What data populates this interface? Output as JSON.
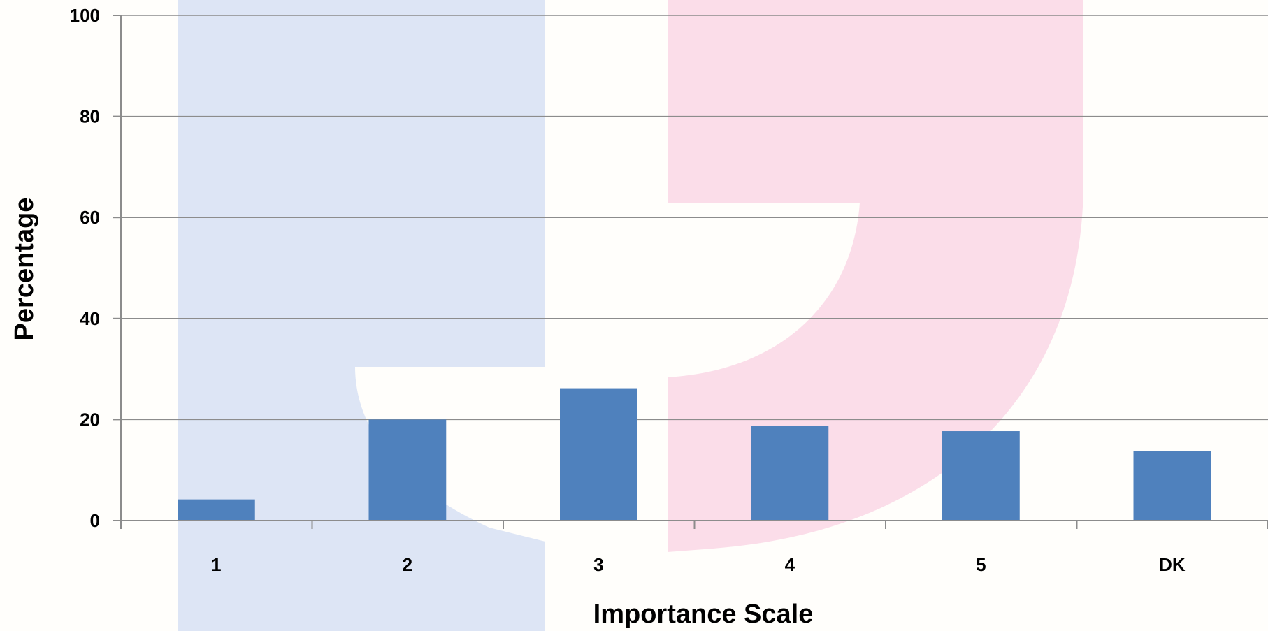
{
  "chart_data": {
    "type": "bar",
    "title": "",
    "xlabel": "Importance Scale",
    "ylabel": "Percentage",
    "categories": [
      "1",
      "2",
      "3",
      "4",
      "5",
      "DK"
    ],
    "series": [
      {
        "values": [
          4.2,
          20,
          26.2,
          18.8,
          17.7,
          13.7
        ]
      }
    ],
    "ylim": [
      0,
      100
    ],
    "yticks": [
      0,
      20,
      40,
      60,
      80,
      100
    ],
    "grid": true,
    "legend": "none",
    "colors": {
      "bar": "#4f81bd",
      "grid": "#8c8c8c",
      "axis": "#8c8c8c",
      "watermark_blue": "#dde5f5",
      "watermark_pink": "#fbdde9",
      "background": "#fffefb"
    }
  }
}
